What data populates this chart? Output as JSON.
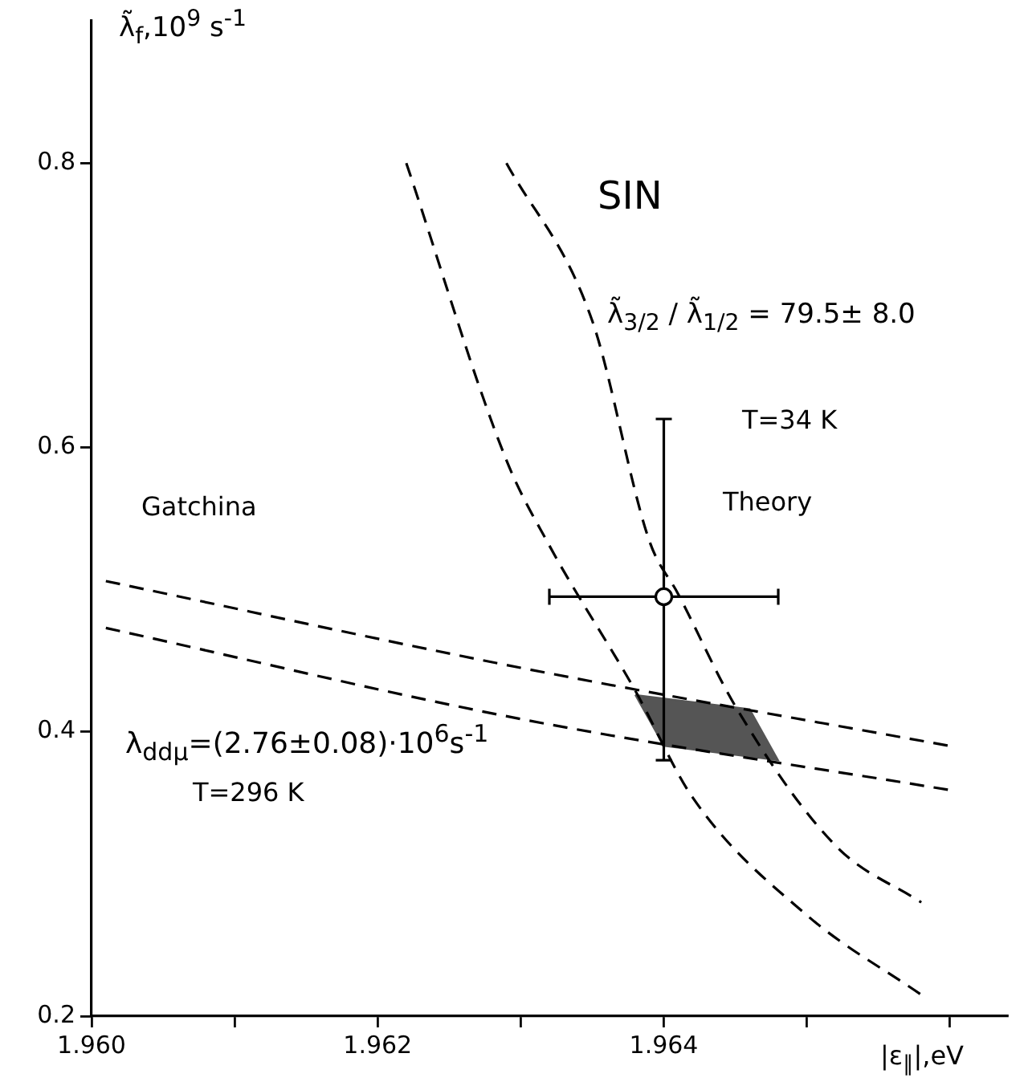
{
  "chart_data": {
    "type": "line",
    "xlabel": "|ε$_{∥}$|,eV",
    "ylabel": "λ̃$_{f}$,10$^{9}$ s$^{-1}$",
    "xlim": [
      1.96,
      1.9664
    ],
    "ylim": [
      0.2,
      0.9
    ],
    "xticks": [
      {
        "value": 1.96,
        "label": "1.960"
      },
      {
        "value": 1.961,
        "label": null
      },
      {
        "value": 1.962,
        "label": "1.962"
      },
      {
        "value": 1.963,
        "label": null
      },
      {
        "value": 1.964,
        "label": "1.964"
      },
      {
        "value": 1.965,
        "label": null
      },
      {
        "value": 1.966,
        "label": null
      }
    ],
    "yticks": [
      0.2,
      0.4,
      0.6,
      0.8
    ],
    "grid": false,
    "legend": false,
    "series": [
      {
        "color": "#000000",
        "line_style": "dashed",
        "x": [
          1.9601,
          1.963,
          1.966
        ],
        "values": [
          0.506,
          0.445,
          0.39
        ]
      },
      {
        "color": "#000000",
        "line_style": "dashed",
        "x": [
          1.9601,
          1.963,
          1.966
        ],
        "values": [
          0.473,
          0.409,
          0.359
        ]
      },
      {
        "color": "#000000",
        "line_style": "dashed",
        "x": [
          1.9622,
          1.9629,
          1.9632,
          1.9638,
          1.9642,
          1.965,
          1.9658
        ],
        "values": [
          0.8,
          0.591,
          0.531,
          0.429,
          0.354,
          0.271,
          0.215
        ]
      },
      {
        "color": "#000000",
        "line_style": "dashed",
        "x": [
          1.9629,
          1.9635,
          1.9639,
          1.9641,
          1.9645,
          1.9652,
          1.9658
        ],
        "values": [
          0.8,
          0.689,
          0.534,
          0.497,
          0.418,
          0.32,
          0.28
        ]
      },
      {
        "type": "area",
        "color": "#555555",
        "x": [
          1.9638,
          1.9646,
          1.9648,
          1.964,
          1.9638
        ],
        "values": [
          0.426,
          0.416,
          0.38,
          0.39,
          0.426
        ]
      },
      {
        "type": "scatter",
        "color": "#000000",
        "marker": "circle",
        "x": [
          1.964
        ],
        "values": [
          0.495
        ],
        "errors": [
          [
            0.38,
            0.62
          ]
        ],
        "xerrors": [
          [
            1.9632,
            1.9648
          ]
        ]
      }
    ],
    "annotations": [
      "SIN",
      "λ̃$_{3/2}$ / λ̃$_{1/2}$ = 79.5± 8.0",
      "T=34 K",
      "Theory",
      "Gatchina",
      "λ$_{ddμ}$=(2.76±0.08)·10$^{6}$s$^{-1}$",
      "T=296 K"
    ]
  }
}
